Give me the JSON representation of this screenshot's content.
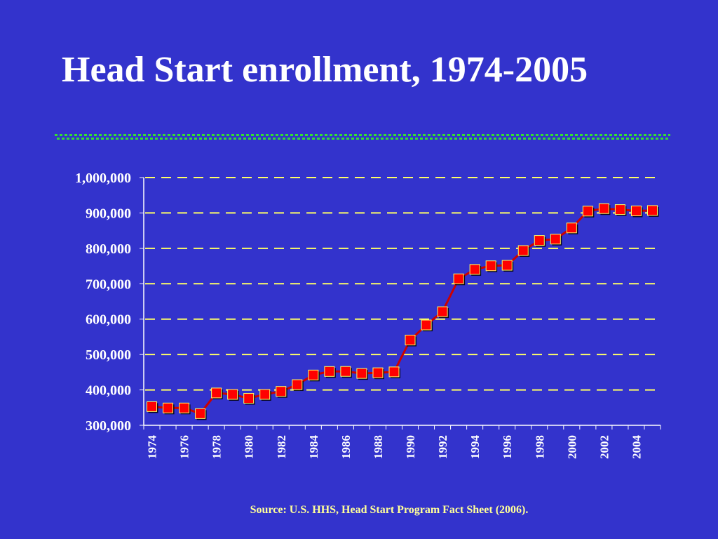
{
  "slide": {
    "title": "Head Start enrollment, 1974-2005",
    "source": "Source: U.S. HHS, Head Start Program Fact Sheet (2006)."
  },
  "colors": {
    "background": "#3333cc",
    "text": "#ffffff",
    "gridline": "#ffff66",
    "line": "#cc0000",
    "marker": "#ff0000",
    "title_rule": "#33dd33"
  },
  "chart_data": {
    "type": "line",
    "title": "",
    "xlabel": "",
    "ylabel": "",
    "ylim": [
      300000,
      1000000
    ],
    "y_ticks": [
      300000,
      400000,
      500000,
      600000,
      700000,
      800000,
      900000,
      1000000
    ],
    "y_tick_labels": [
      "300,000",
      "400,000",
      "500,000",
      "600,000",
      "700,000",
      "800,000",
      "900,000",
      "1,000,000"
    ],
    "x_tick_labels": [
      "1974",
      "1976",
      "1978",
      "1980",
      "1982",
      "1984",
      "1986",
      "1988",
      "1990",
      "1992",
      "1994",
      "1996",
      "1998",
      "2000",
      "2002",
      "2004"
    ],
    "grid": true,
    "grid_style": "dashed horizontal",
    "marker": "square",
    "series": [
      {
        "x": [
          1974,
          1975,
          1976,
          1977,
          1978,
          1979,
          1980,
          1981,
          1982,
          1983,
          1984,
          1985,
          1986,
          1987,
          1988,
          1989,
          1990,
          1991,
          1992,
          1993,
          1994,
          1995,
          1996,
          1997,
          1998,
          1999,
          2000,
          2001,
          2002,
          2003,
          2004,
          2005
        ],
        "values": [
          352800,
          349000,
          349000,
          333000,
          391400,
          387300,
          376300,
          387300,
          395800,
          414950,
          442140,
          452080,
          452250,
          446520,
          448460,
          450970,
          540930,
          583470,
          621078,
          713903,
          740493,
          750696,
          752077,
          793809,
          822316,
          826016,
          857664,
          905235,
          912345,
          909608,
          905851,
          906993
        ]
      }
    ]
  }
}
